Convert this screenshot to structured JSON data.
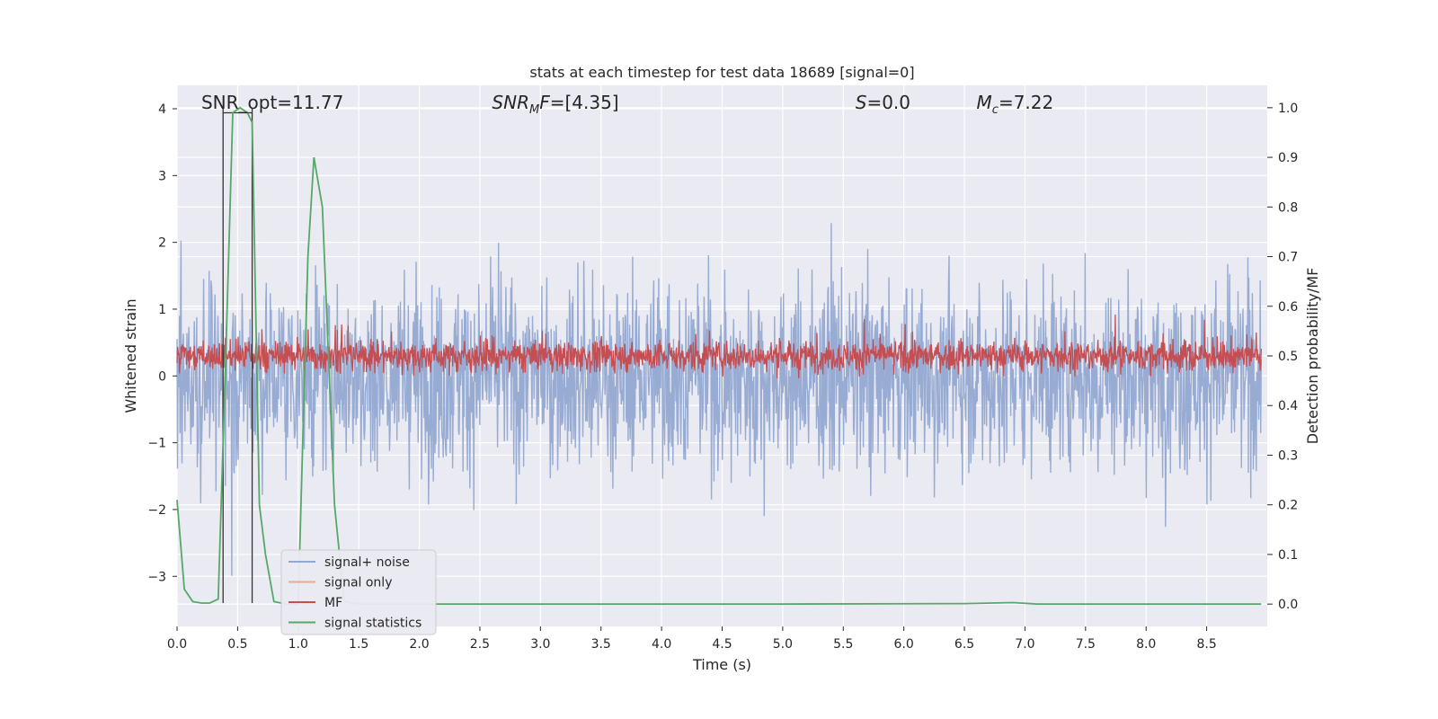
{
  "chart_data": {
    "type": "line",
    "title": "stats at each timestep for test data 18689 [signal=0]",
    "xlabel": "Time (s)",
    "ylabel_left": "Whitened strain",
    "ylabel_right": "Detection probability/MF",
    "xlim": [
      0.0,
      9.0
    ],
    "ylim_left": [
      -3.75,
      4.35
    ],
    "ylim_right": [
      -0.045,
      1.045
    ],
    "x_ticks": [
      0.0,
      0.5,
      1.0,
      1.5,
      2.0,
      2.5,
      3.0,
      3.5,
      4.0,
      4.5,
      5.0,
      5.5,
      6.0,
      6.5,
      7.0,
      7.5,
      8.0,
      8.5
    ],
    "x_tick_labels": [
      "0.0",
      "0.5",
      "1.0",
      "1.5",
      "2.0",
      "2.5",
      "3.0",
      "3.5",
      "4.0",
      "4.5",
      "5.0",
      "5.5",
      "6.0",
      "6.5",
      "7.0",
      "7.5",
      "8.0",
      "8.5"
    ],
    "y_left_ticks": [
      -3,
      -2,
      -1,
      0,
      1,
      2,
      3,
      4
    ],
    "y_left_tick_labels": [
      "−3",
      "−2",
      "−1",
      "0",
      "1",
      "2",
      "3",
      "4"
    ],
    "y_right_ticks": [
      0.0,
      0.1,
      0.2,
      0.3,
      0.4,
      0.5,
      0.6,
      0.7,
      0.8,
      0.9,
      1.0
    ],
    "y_right_tick_labels": [
      "0.0",
      "0.1",
      "0.2",
      "0.3",
      "0.4",
      "0.5",
      "0.6",
      "0.7",
      "0.8",
      "0.9",
      "1.0"
    ],
    "grid": true,
    "legend_position": "bottom-left",
    "series": [
      {
        "name": "signal+ noise",
        "color": "#92a8d1",
        "axis": "left",
        "note_range": [
          -3.4,
          4.0
        ]
      },
      {
        "name": "signal only",
        "color": "#f0a787",
        "axis": "left"
      },
      {
        "name": "MF",
        "color": "#c44e52",
        "axis": "right"
      },
      {
        "name": "signal statistics",
        "color": "#55a868",
        "axis": "right",
        "x": [
          0.0,
          0.06,
          0.13,
          0.2,
          0.27,
          0.34,
          0.4,
          0.46,
          0.52,
          0.58,
          0.62,
          0.68,
          0.73,
          0.8,
          0.9,
          1.0,
          1.08,
          1.13,
          1.2,
          1.3,
          1.38,
          1.5,
          3.0,
          5.0,
          6.5,
          6.9,
          7.1,
          8.0,
          8.95
        ],
        "y": [
          0.21,
          0.03,
          0.005,
          0.002,
          0.002,
          0.01,
          0.48,
          0.99,
          1.0,
          0.99,
          0.97,
          0.2,
          0.1,
          0.005,
          0.0,
          0.0,
          0.7,
          0.9,
          0.8,
          0.2,
          0.005,
          0.0,
          0.0,
          0.0,
          0.001,
          0.003,
          0.0,
          0.0,
          0.0
        ]
      }
    ],
    "vertical_lines": [
      0.38,
      0.62
    ],
    "annotations": [
      {
        "text": "SNR_opt=11.77",
        "x": 0.2
      },
      {
        "text": "=[4.35]",
        "italic_prefix": "SNR",
        "subscript": "M",
        "italic_suffix": "F",
        "x": 2.6
      },
      {
        "text": "=0.0",
        "italic_prefix": "S",
        "x": 5.6
      },
      {
        "text": "=7.22",
        "italic_prefix": "M",
        "subscript": "c",
        "x": 6.6
      }
    ]
  }
}
